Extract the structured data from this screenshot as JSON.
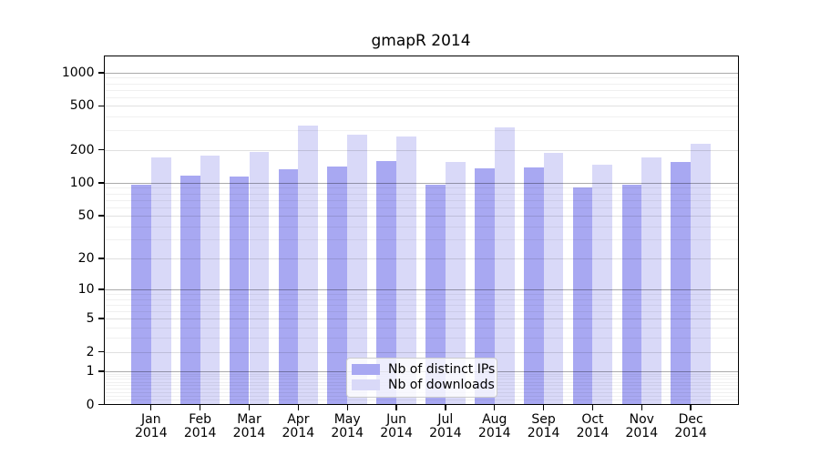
{
  "chart_data": {
    "type": "bar",
    "title": "gmapR 2014",
    "categories": [
      "Jan",
      "Feb",
      "Mar",
      "Apr",
      "May",
      "Jun",
      "Jul",
      "Aug",
      "Sep",
      "Oct",
      "Nov",
      "Dec"
    ],
    "category_year": "2014",
    "series": [
      {
        "name": "Nb of distinct IPs",
        "color": "#a8a8f2",
        "values": [
          96,
          116,
          115,
          133,
          142,
          158,
          97,
          135,
          137,
          90,
          97,
          154
        ]
      },
      {
        "name": "Nb of downloads",
        "color": "#d9d9f8",
        "values": [
          170,
          177,
          190,
          330,
          275,
          264,
          154,
          320,
          189,
          146,
          171,
          228
        ]
      }
    ],
    "yscale": "log10(1+y)",
    "ylim": [
      0,
      1430
    ],
    "yticks": [
      0,
      1,
      2,
      5,
      10,
      20,
      50,
      100,
      200,
      500,
      1000
    ],
    "yticks_emphasized": [
      1,
      10,
      100,
      1000
    ],
    "yticks_minor": [
      0.1,
      0.2,
      0.3,
      0.4,
      0.5,
      0.6,
      0.7,
      0.8,
      0.9,
      3,
      4,
      6,
      7,
      8,
      9,
      30,
      40,
      60,
      70,
      80,
      90,
      300,
      400,
      600,
      700,
      800,
      900
    ],
    "grid": "horizontal",
    "xlabel": "",
    "ylabel": "",
    "legend": {
      "position": "inside-bottom-center",
      "labels": [
        "Nb of distinct IPs",
        "Nb of downloads"
      ]
    }
  }
}
